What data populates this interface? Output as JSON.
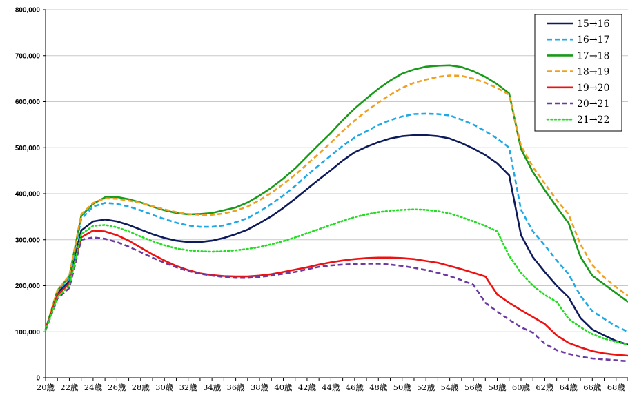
{
  "chart_data": {
    "type": "line",
    "ylim": [
      0,
      800000
    ],
    "y_ticks": [
      0,
      100000,
      200000,
      300000,
      400000,
      500000,
      600000,
      700000,
      800000
    ],
    "y_tick_labels": [
      "0",
      "100,000",
      "200,000",
      "300,000",
      "400,000",
      "500,000",
      "600,000",
      "700,000",
      "800,000"
    ],
    "x": [
      20,
      21,
      22,
      23,
      24,
      25,
      26,
      27,
      28,
      29,
      30,
      31,
      32,
      33,
      34,
      35,
      36,
      37,
      38,
      39,
      40,
      41,
      42,
      43,
      44,
      45,
      46,
      47,
      48,
      49,
      50,
      51,
      52,
      53,
      54,
      55,
      56,
      57,
      58,
      59,
      60,
      61,
      62,
      63,
      64,
      65,
      66,
      67,
      68,
      69
    ],
    "x_tick_labels": [
      "20歳",
      "22歳",
      "24歳",
      "26歳",
      "28歳",
      "30歳",
      "32歳",
      "34歳",
      "36歳",
      "38歳",
      "40歳",
      "42歳",
      "44歳",
      "46歳",
      "48歳",
      "50歳",
      "52歳",
      "54歳",
      "56歳",
      "58歳",
      "60歳",
      "62歳",
      "64歳",
      "66歳",
      "68歳"
    ],
    "grid": "horizontal",
    "legend_position": "top-right",
    "series": [
      {
        "name": "15→16",
        "color": "#0d1a5c",
        "dash": "solid",
        "values": [
          105000,
          185000,
          210000,
          320000,
          340000,
          344000,
          340000,
          332000,
          322000,
          312000,
          304000,
          298000,
          295000,
          295000,
          298000,
          304000,
          312000,
          322000,
          336000,
          351000,
          369000,
          389000,
          410000,
          431000,
          451000,
          472000,
          490000,
          502000,
          512000,
          520000,
          525000,
          527000,
          527000,
          525000,
          520000,
          510000,
          498000,
          484000,
          466000,
          440000,
          310000,
          262000,
          230000,
          200000,
          175000,
          130000,
          105000,
          92000,
          80000,
          72000
        ]
      },
      {
        "name": "16→17",
        "color": "#1ea9e6",
        "dash": "dashed",
        "values": [
          105000,
          188000,
          215000,
          345000,
          372000,
          380000,
          378000,
          372000,
          364000,
          354000,
          345000,
          337000,
          331000,
          328000,
          328000,
          331000,
          338000,
          347000,
          361000,
          378000,
          396000,
          417000,
          440000,
          462000,
          483000,
          504000,
          522000,
          536000,
          549000,
          560000,
          568000,
          573000,
          574000,
          573000,
          570000,
          561000,
          550000,
          536000,
          520000,
          500000,
          365000,
          318000,
          288000,
          255000,
          225000,
          178000,
          145000,
          128000,
          112000,
          100000
        ]
      },
      {
        "name": "17→18",
        "color": "#1a9a1a",
        "dash": "solid",
        "values": [
          105000,
          190000,
          220000,
          352000,
          378000,
          392000,
          393000,
          388000,
          381000,
          372000,
          364000,
          358000,
          355000,
          356000,
          358000,
          364000,
          370000,
          381000,
          396000,
          413000,
          433000,
          455000,
          481000,
          507000,
          532000,
          560000,
          585000,
          607000,
          628000,
          646000,
          661000,
          670000,
          676000,
          678000,
          679000,
          675000,
          666000,
          654000,
          638000,
          618000,
          497000,
          447000,
          408000,
          371000,
          336000,
          263000,
          222000,
          203000,
          184000,
          165000
        ]
      },
      {
        "name": "18→19",
        "color": "#f0a020",
        "dash": "dashed",
        "values": [
          105000,
          190000,
          222000,
          355000,
          380000,
          390000,
          389000,
          385000,
          380000,
          373000,
          366000,
          360000,
          356000,
          354000,
          354000,
          357000,
          363000,
          372000,
          386000,
          402000,
          421000,
          441000,
          464000,
          487000,
          511000,
          536000,
          559000,
          580000,
          598000,
          615000,
          630000,
          641000,
          648000,
          654000,
          657000,
          656000,
          650000,
          641000,
          630000,
          615000,
          504000,
          458000,
          422000,
          386000,
          355000,
          290000,
          245000,
          218000,
          197000,
          178000
        ]
      },
      {
        "name": "19→20",
        "color": "#ee1111",
        "dash": "solid",
        "values": [
          105000,
          180000,
          205000,
          305000,
          320000,
          318000,
          310000,
          298000,
          283000,
          268000,
          255000,
          243000,
          234000,
          227000,
          223000,
          221000,
          220000,
          220000,
          222000,
          225000,
          230000,
          235000,
          240000,
          246000,
          251000,
          255000,
          258000,
          260000,
          261000,
          261000,
          260000,
          258000,
          254000,
          250000,
          243000,
          236000,
          228000,
          220000,
          181000,
          163000,
          147000,
          132000,
          117000,
          92000,
          76000,
          66000,
          58000,
          53000,
          50000,
          48000
        ]
      },
      {
        "name": "20→21",
        "color": "#6a3aa0",
        "dash": "dashed",
        "values": [
          103000,
          172000,
          195000,
          300000,
          305000,
          302000,
          295000,
          285000,
          273000,
          261000,
          250000,
          240000,
          232000,
          226000,
          222000,
          219000,
          217000,
          217000,
          219000,
          222000,
          226000,
          230000,
          236000,
          241000,
          244000,
          246000,
          247000,
          248000,
          248000,
          246000,
          243000,
          239000,
          234000,
          228000,
          221000,
          212000,
          202000,
          163000,
          144000,
          126000,
          110000,
          98000,
          74000,
          60000,
          52000,
          46000,
          42000,
          40000,
          38000,
          36000
        ]
      },
      {
        "name": "21→22",
        "color": "#22dd22",
        "dash": "dotted",
        "values": [
          103000,
          175000,
          200000,
          312000,
          330000,
          332000,
          327000,
          318000,
          307000,
          297000,
          288000,
          281000,
          277000,
          275000,
          274000,
          275000,
          277000,
          280000,
          284000,
          290000,
          297000,
          305000,
          314000,
          323000,
          332000,
          341000,
          349000,
          355000,
          360000,
          363000,
          365000,
          366000,
          365000,
          362000,
          357000,
          349000,
          340000,
          330000,
          318000,
          265000,
          228000,
          200000,
          180000,
          165000,
          128000,
          110000,
          95000,
          85000,
          78000,
          72000
        ]
      }
    ]
  }
}
